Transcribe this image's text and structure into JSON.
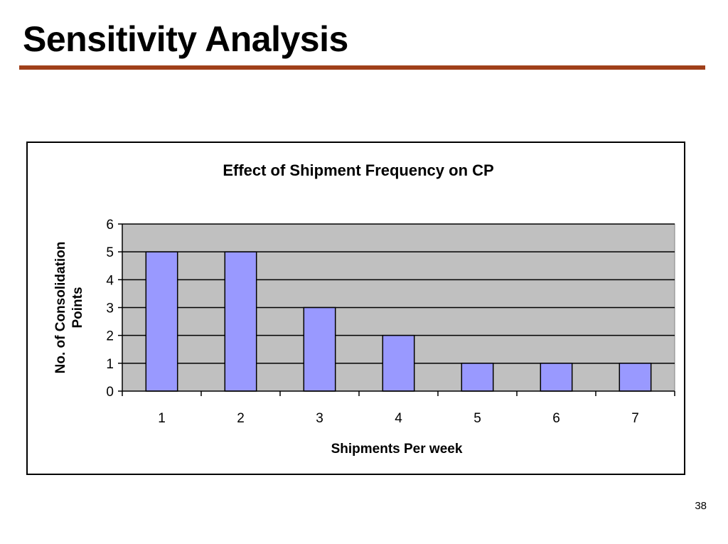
{
  "slide": {
    "title": "Sensitivity Analysis",
    "page_number": "38",
    "accent_color": "#a0401a"
  },
  "chart_data": {
    "type": "bar",
    "title": "Effect of Shipment Frequency on CP",
    "xlabel": "Shipments Per week",
    "ylabel": "No. of Consolidation Points",
    "categories": [
      "1",
      "2",
      "3",
      "4",
      "5",
      "6",
      "7"
    ],
    "values": [
      5,
      5,
      3,
      2,
      1,
      1,
      1
    ],
    "ylim": [
      0,
      6
    ],
    "yticks": [
      "0",
      "1",
      "2",
      "3",
      "4",
      "5",
      "6"
    ],
    "grid": true,
    "legend": false,
    "bar_color": "#9999ff",
    "plot_background": "#c0c0c0"
  }
}
